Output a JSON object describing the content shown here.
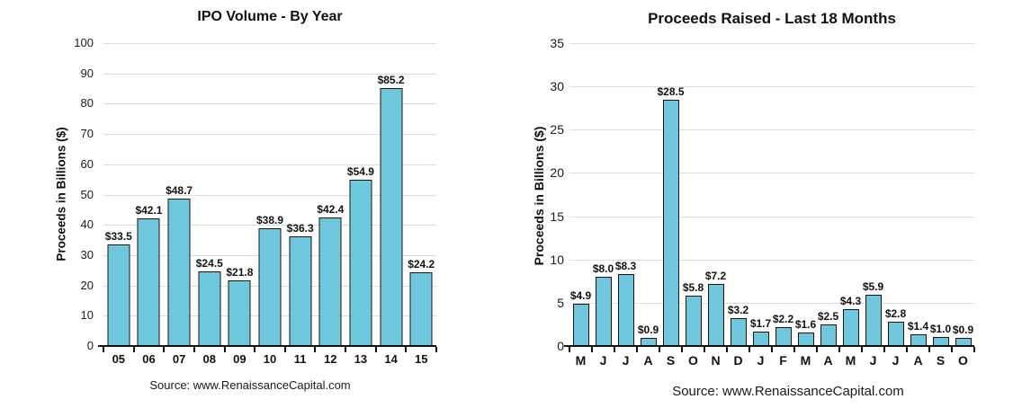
{
  "page": {
    "background": "#ffffff"
  },
  "chart_data": [
    {
      "type": "bar",
      "title": "IPO Volume - By Year",
      "ylabel": "Proceeds in Billions ($)",
      "xlabel": "",
      "source": "Source: www.RenaissanceCapital.com",
      "categories": [
        "05",
        "06",
        "07",
        "08",
        "09",
        "10",
        "11",
        "12",
        "13",
        "14",
        "15"
      ],
      "values": [
        33.5,
        42.1,
        48.7,
        24.5,
        21.8,
        38.9,
        36.3,
        42.4,
        54.9,
        85.2,
        24.2
      ],
      "bar_labels": [
        "$33.5",
        "$42.1",
        "$48.7",
        "$24.5",
        "$21.8",
        "$38.9",
        "$36.3",
        "$42.4",
        "$54.9",
        "$85.2",
        "$24.2"
      ],
      "ylim": [
        0,
        100
      ],
      "ytick_step": 10,
      "grid": true,
      "legend": false,
      "bar_color": "#6fc7dd",
      "bar_border_color": "#141414",
      "gridline_color": "#dcdcdc"
    },
    {
      "type": "bar",
      "title": "Proceeds Raised - Last 18 Months",
      "ylabel": "Proceeds in Billions ($)",
      "xlabel": "",
      "source": "Source: www.RenaissanceCapital.com",
      "categories": [
        "M",
        "J",
        "J",
        "A",
        "S",
        "O",
        "N",
        "D",
        "J",
        "F",
        "M",
        "A",
        "M",
        "J",
        "J",
        "A",
        "S",
        "O"
      ],
      "values": [
        4.9,
        8.0,
        8.3,
        0.9,
        28.5,
        5.8,
        7.2,
        3.2,
        1.7,
        2.2,
        1.6,
        2.5,
        4.3,
        5.9,
        2.8,
        1.4,
        1.0,
        0.9
      ],
      "bar_labels": [
        "$4.9",
        "$8.0",
        "$8.3",
        "$0.9",
        "$28.5",
        "$5.8",
        "$7.2",
        "$3.2",
        "$1.7",
        "$2.2",
        "$1.6",
        "$2.5",
        "$4.3",
        "$5.9",
        "$2.8",
        "$1.4",
        "$1.0",
        "$0.9"
      ],
      "ylim": [
        0,
        35
      ],
      "ytick_step": 5,
      "grid": true,
      "legend": false,
      "bar_color": "#6fc7dd",
      "bar_border_color": "#141414",
      "gridline_color": "#dcdcdc"
    }
  ]
}
